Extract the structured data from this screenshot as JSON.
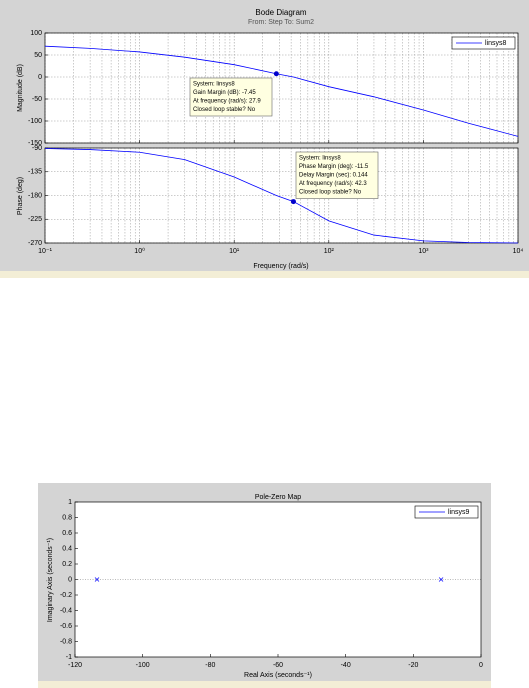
{
  "chart_data": [
    {
      "type": "line",
      "title": "Bode Diagram",
      "subtitle": "From: Step  To: Sum2",
      "ylabel": "Magnitude (dB)",
      "xscale": "log",
      "xlim": [
        0.1,
        10000
      ],
      "xticks": [
        0.1,
        1,
        10,
        100,
        1000,
        10000
      ],
      "ylim": [
        -150,
        100
      ],
      "yticks": [
        -150,
        -100,
        -50,
        0,
        50,
        100
      ],
      "grid": true,
      "legend": "upper right",
      "x": [
        0.1,
        0.3,
        1,
        3,
        10,
        27.9,
        42.3,
        100,
        300,
        1000,
        3000,
        10000
      ],
      "series": [
        {
          "name": "linsys8",
          "color": "#0000ff",
          "values": [
            70,
            65,
            57,
            45,
            28,
            7.45,
            0,
            -22,
            -45,
            -75,
            -105,
            -135
          ]
        }
      ],
      "markers": [
        {
          "x": 27.9,
          "y": 7.45
        }
      ],
      "annotations": [
        {
          "lines": [
            "System: linsys8",
            "Gain Margin (dB): -7.45",
            "At frequency (rad/s): 27.9",
            "Closed loop stable? No"
          ]
        }
      ]
    },
    {
      "type": "line",
      "xlabel": "Frequency  (rad/s)",
      "ylabel": "Phase (deg)",
      "xscale": "log",
      "xlim": [
        0.1,
        10000
      ],
      "xticks": [
        {
          "value": 0.1,
          "label": "10⁻¹"
        },
        {
          "value": 1,
          "label": "10⁰"
        },
        {
          "value": 10,
          "label": "10¹"
        },
        {
          "value": 100,
          "label": "10²"
        },
        {
          "value": 1000,
          "label": "10³"
        },
        {
          "value": 10000,
          "label": "10⁴"
        }
      ],
      "ylim": [
        -270,
        -90
      ],
      "yticks": [
        -270,
        -225,
        -180,
        -135,
        -90
      ],
      "grid": true,
      "x": [
        0.1,
        0.3,
        1,
        3,
        10,
        27.9,
        42.3,
        100,
        300,
        1000,
        3000,
        10000
      ],
      "series": [
        {
          "color": "#0000ff",
          "values": [
            -91,
            -93,
            -98,
            -112,
            -145,
            -180,
            -191.5,
            -228,
            -255,
            -266,
            -269,
            -270
          ]
        }
      ],
      "markers": [
        {
          "x": 42.3,
          "y": -191.5
        }
      ],
      "annotations": [
        {
          "lines": [
            "System: linsys8",
            "Phase Margin (deg): -11.5",
            "Delay Margin (sec): 0.144",
            "At frequency (rad/s): 42.3",
            "Closed loop stable? No"
          ]
        }
      ]
    },
    {
      "type": "scatter",
      "title": "Pole-Zero Map",
      "xlabel": "Real Axis (seconds⁻¹)",
      "ylabel": "Imaginary Axis (seconds⁻¹)",
      "xlim": [
        -120,
        0
      ],
      "xticks": [
        -120,
        -100,
        -80,
        -60,
        -40,
        -20,
        0
      ],
      "ylim": [
        -1,
        1
      ],
      "yticks": [
        -1,
        -0.8,
        -0.6,
        -0.4,
        -0.2,
        0,
        0.2,
        0.4,
        0.6,
        0.8,
        1
      ],
      "legend": "upper right",
      "series": [
        {
          "name": "linsys9",
          "color": "#0000ff",
          "marker": "x",
          "x": [
            -113.5,
            -11.8
          ],
          "y": [
            0,
            0
          ]
        }
      ]
    }
  ]
}
